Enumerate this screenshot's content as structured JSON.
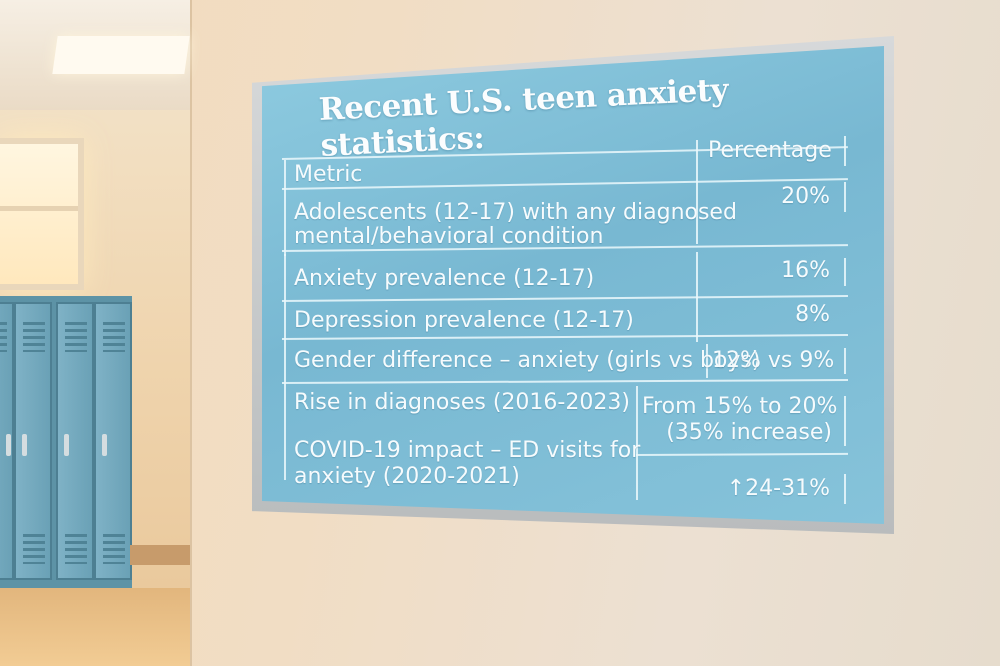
{
  "title": "Recent U.S. teen anxiety statistics:",
  "table": {
    "headers": {
      "metric": "Metric",
      "percentage": "Percentage"
    },
    "rows": [
      {
        "metric_line1": "Adolescents (12-17) with any diagnosed",
        "metric_line2": "mental/behavioral condition",
        "percentage": "20%"
      },
      {
        "metric": "Anxiety prevalence (12-17)",
        "percentage": "16%"
      },
      {
        "metric": "Depression prevalence (12-17)",
        "percentage": "8%"
      },
      {
        "metric": "Gender difference – anxiety (girls vs boys)",
        "percentage": "12% vs 9%"
      },
      {
        "metric": "Rise in diagnoses (2016-2023)",
        "percentage_line1": "From 15% to 20%",
        "percentage_line2": "(35% increase)"
      },
      {
        "metric_line1": "COVID-19 impact – ED visits for",
        "metric_line2": "anxiety (2020-2021)",
        "percentage": "↑24-31%"
      }
    ]
  }
}
